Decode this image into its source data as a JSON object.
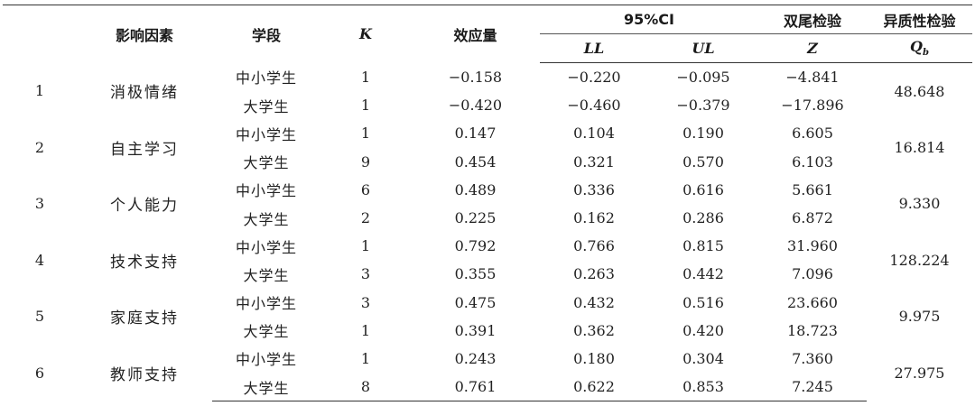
{
  "headers": {
    "no": "",
    "factor": "影响因素",
    "stage": "学段",
    "k": "K",
    "effect": "效应量",
    "ci_group": "95%CI",
    "ll": "LL",
    "ul": "UL",
    "z_group": "双尾检验",
    "z": "Z",
    "q_group": "异质性检验",
    "q": "Q",
    "q_sub": "b"
  },
  "groups": [
    {
      "no": "1",
      "factor": "消极情绪",
      "q": "48.648",
      "rows": [
        {
          "stage": "中小学生",
          "k": "1",
          "effect": "−0.158",
          "ll": "−0.220",
          "ul": "−0.095",
          "z": "−4.841"
        },
        {
          "stage": "大学生",
          "k": "1",
          "effect": "−0.420",
          "ll": "−0.460",
          "ul": "−0.379",
          "z": "−17.896"
        }
      ]
    },
    {
      "no": "2",
      "factor": "自主学习",
      "q": "16.814",
      "rows": [
        {
          "stage": "中小学生",
          "k": "1",
          "effect": "0.147",
          "ll": "0.104",
          "ul": "0.190",
          "z": "6.605"
        },
        {
          "stage": "大学生",
          "k": "9",
          "effect": "0.454",
          "ll": "0.321",
          "ul": "0.570",
          "z": "6.103"
        }
      ]
    },
    {
      "no": "3",
      "factor": "个人能力",
      "q": "9.330",
      "rows": [
        {
          "stage": "中小学生",
          "k": "6",
          "effect": "0.489",
          "ll": "0.336",
          "ul": "0.616",
          "z": "5.661"
        },
        {
          "stage": "大学生",
          "k": "2",
          "effect": "0.225",
          "ll": "0.162",
          "ul": "0.286",
          "z": "6.872"
        }
      ]
    },
    {
      "no": "4",
      "factor": "技术支持",
      "q": "128.224",
      "rows": [
        {
          "stage": "中小学生",
          "k": "1",
          "effect": "0.792",
          "ll": "0.766",
          "ul": "0.815",
          "z": "31.960"
        },
        {
          "stage": "大学生",
          "k": "3",
          "effect": "0.355",
          "ll": "0.263",
          "ul": "0.442",
          "z": "7.096"
        }
      ]
    },
    {
      "no": "5",
      "factor": "家庭支持",
      "q": "9.975",
      "rows": [
        {
          "stage": "中小学生",
          "k": "3",
          "effect": "0.475",
          "ll": "0.432",
          "ul": "0.516",
          "z": "23.660"
        },
        {
          "stage": "大学生",
          "k": "1",
          "effect": "0.391",
          "ll": "0.362",
          "ul": "0.420",
          "z": "18.723"
        }
      ]
    },
    {
      "no": "6",
      "factor": "教师支持",
      "q": "27.975",
      "rows": [
        {
          "stage": "中小学生",
          "k": "1",
          "effect": "0.243",
          "ll": "0.180",
          "ul": "0.304",
          "z": "7.360"
        },
        {
          "stage": "大学生",
          "k": "8",
          "effect": "0.761",
          "ll": "0.622",
          "ul": "0.853",
          "z": "7.245"
        }
      ]
    }
  ]
}
